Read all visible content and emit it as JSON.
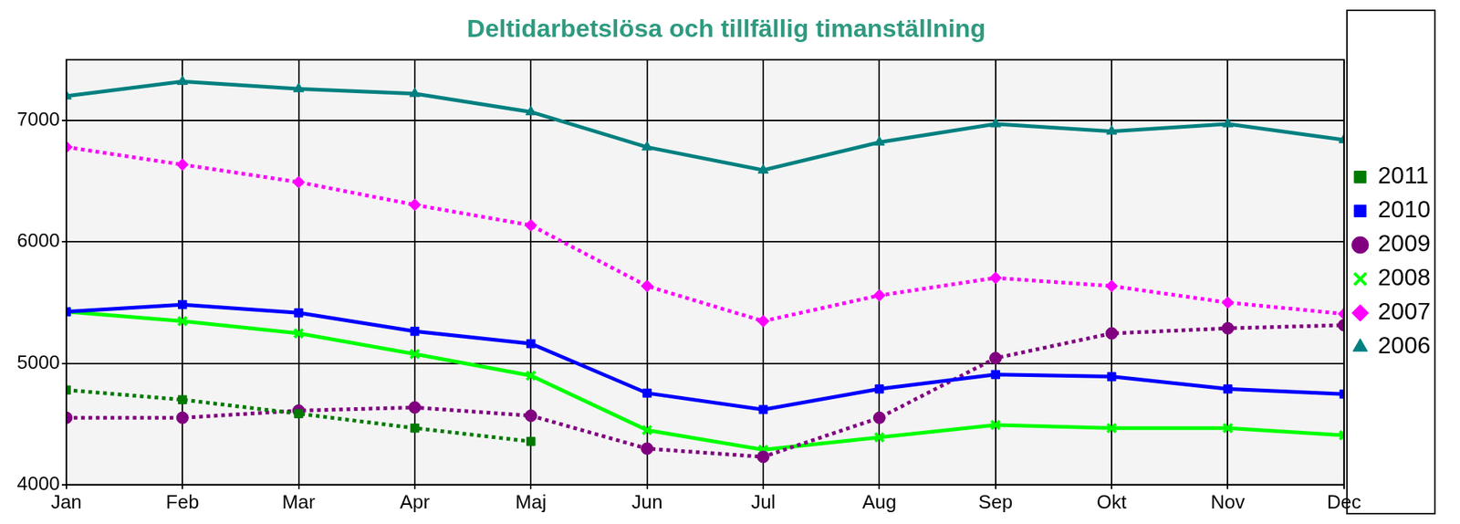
{
  "chart_data": {
    "type": "line",
    "title": "Deltidarbetslösa och tillfällig timanställning",
    "categories": [
      "Jan",
      "Feb",
      "Mar",
      "Apr",
      "Maj",
      "Jun",
      "Jul",
      "Aug",
      "Sep",
      "Okt",
      "Nov",
      "Dec"
    ],
    "ylim": [
      4000,
      7500
    ],
    "yticks": [
      4000,
      5000,
      6000,
      7000
    ],
    "grid": true,
    "legend": "right",
    "series": [
      {
        "name": "2011",
        "color": "#007a00",
        "marker": "square",
        "line_style": "dotted",
        "values": [
          4780,
          4700,
          4585,
          4466,
          4356,
          null,
          null,
          null,
          null,
          null,
          null,
          null
        ]
      },
      {
        "name": "2010",
        "color": "#0000ff",
        "marker": "square",
        "line_style": "solid",
        "values": [
          5424,
          5483,
          5415,
          5263,
          5161,
          4754,
          4619,
          4788,
          4907,
          4890,
          4788,
          4746
        ]
      },
      {
        "name": "2009",
        "color": "#800080",
        "marker": "circle",
        "line_style": "dotted",
        "values": [
          4551,
          4551,
          4610,
          4636,
          4568,
          4297,
          4229,
          4551,
          5042,
          5246,
          5288,
          5314
        ]
      },
      {
        "name": "2008",
        "color": "#00ff00",
        "marker": "cross",
        "line_style": "solid",
        "values": [
          5424,
          5347,
          5246,
          5076,
          4898,
          4449,
          4288,
          4390,
          4492,
          4466,
          4466,
          4407
        ]
      },
      {
        "name": "2007",
        "color": "#ff00ff",
        "marker": "diamond",
        "line_style": "dotted",
        "values": [
          6780,
          6636,
          6492,
          6305,
          6136,
          5636,
          5347,
          5559,
          5703,
          5636,
          5500,
          5407
        ]
      },
      {
        "name": "2006",
        "color": "#008080",
        "marker": "triangle",
        "line_style": "solid",
        "values": [
          7200,
          7320,
          7260,
          7220,
          7070,
          6780,
          6590,
          6820,
          6970,
          6910,
          6970,
          6840
        ]
      }
    ]
  }
}
